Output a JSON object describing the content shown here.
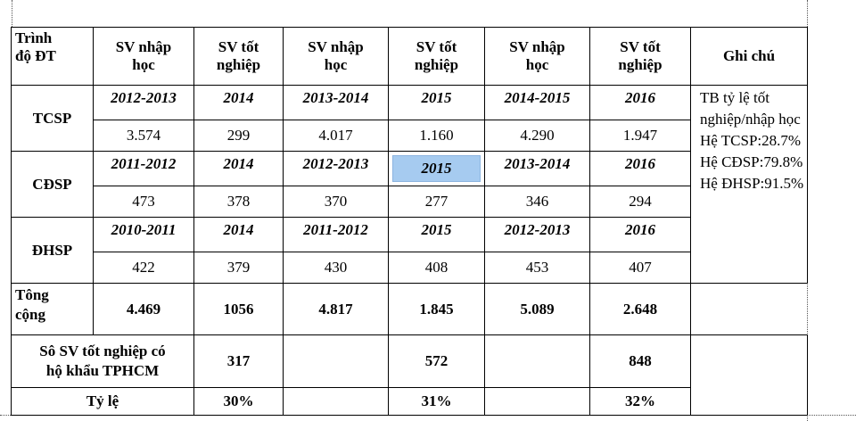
{
  "header": {
    "level_line1": "Trình",
    "level_line2": "độ ĐT",
    "enrolled_line1": "SV nhập",
    "enrolled_line2": "học",
    "graduated_line1": "SV tốt",
    "graduated_line2": "nghiệp",
    "notes": "Ghi chú"
  },
  "rows": [
    {
      "level": "TCSP",
      "years": [
        "2012-2013",
        "2014",
        "2013-2014",
        "2015",
        "2014-2015",
        "2016"
      ],
      "values": [
        "3.574",
        "299",
        "4.017",
        "1.160",
        "4.290",
        "1.947"
      ]
    },
    {
      "level": "CĐSP",
      "years": [
        "2011-2012",
        "2014",
        "2012-2013",
        "2015",
        "2013-2014",
        "2016"
      ],
      "values": [
        "473",
        "378",
        "370",
        "277",
        "346",
        "294"
      ]
    },
    {
      "level": "ĐHSP",
      "years": [
        "2010-2011",
        "2014",
        "2011-2012",
        "2015",
        "2012-2013",
        "2016"
      ],
      "values": [
        "422",
        "379",
        "430",
        "408",
        "453",
        "407"
      ]
    }
  ],
  "total": {
    "label_line1": "Tông",
    "label_line2": "cộng",
    "values": [
      "4.469",
      "1056",
      "4.817",
      "1.845",
      "5.089",
      "2.648"
    ]
  },
  "hcmc_grads": {
    "label_line1": "Sô SV tốt nghiệp có",
    "label_line2": "hộ khẩu TPHCM",
    "values": [
      "317",
      "572",
      "848"
    ]
  },
  "ratio": {
    "label": "Tỷ lệ",
    "values": [
      "30%",
      "31%",
      "32%"
    ]
  },
  "notes": {
    "lines": [
      "TB tỷ lệ tốt",
      "nghiệp/nhập học",
      "Hệ TCSP:28.7%",
      "Hệ CĐSP:79.8%",
      "Hệ ĐHSP:91.5%"
    ]
  },
  "selection": {
    "highlight_color": "#a6cbf0"
  }
}
